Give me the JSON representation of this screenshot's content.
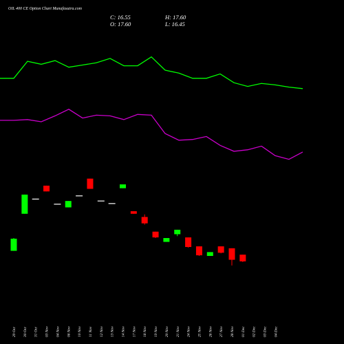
{
  "header": {
    "title": "OIL 400 CE Option Chart Munafasutra.com",
    "close": "C: 16.55",
    "high": "H: 17.60",
    "open": "O: 17.60",
    "low": "L: 16.45"
  },
  "colors": {
    "background": "#000000",
    "up": "#00ff00",
    "down": "#ff0000",
    "neutral": "#ffffff",
    "line_upper": "#00ff00",
    "line_lower": "#cc00cc"
  },
  "chart_data": {
    "type": "candlestick",
    "categories": [
      "29 Oct",
      "30 Oct",
      "31 Oct",
      "03 Nov",
      "04 Nov",
      "06 Nov",
      "10 Nov",
      "11 Nov",
      "12 Nov",
      "13 Nov",
      "14 Nov",
      "17 Nov",
      "18 Nov",
      "19 Nov",
      "20 Nov",
      "21 Nov",
      "24 Nov",
      "25 Nov",
      "26 Nov",
      "27 Nov",
      "28 Nov",
      "01 Dec",
      "02 Dec",
      "03 Dec",
      "04 Dec"
    ],
    "candles": [
      {
        "open": 18.2,
        "high": 20.2,
        "low": 18.2,
        "close": 20.1,
        "dir": "up"
      },
      {
        "open": 24.0,
        "high": 27.0,
        "low": 24.0,
        "close": 27.0,
        "dir": "up"
      },
      {
        "open": 26.3,
        "high": 26.3,
        "low": 26.3,
        "close": 26.3,
        "dir": "flat"
      },
      {
        "open": 28.4,
        "high": 28.4,
        "low": 27.5,
        "close": 27.5,
        "dir": "down"
      },
      {
        "open": 25.5,
        "high": 25.5,
        "low": 25.5,
        "close": 25.5,
        "dir": "flat"
      },
      {
        "open": 25.0,
        "high": 26.0,
        "low": 25.0,
        "close": 26.0,
        "dir": "up"
      },
      {
        "open": 26.8,
        "high": 26.8,
        "low": 26.8,
        "close": 26.8,
        "dir": "flat"
      },
      {
        "open": 29.5,
        "high": 29.5,
        "low": 27.9,
        "close": 27.9,
        "dir": "down"
      },
      {
        "open": 26.0,
        "high": 26.0,
        "low": 26.0,
        "close": 26.0,
        "dir": "flat"
      },
      {
        "open": 25.6,
        "high": 25.6,
        "low": 25.6,
        "close": 25.6,
        "dir": "flat"
      },
      {
        "open": 28.0,
        "high": 28.6,
        "low": 28.0,
        "close": 28.6,
        "dir": "up"
      },
      {
        "open": 24.4,
        "high": 24.4,
        "low": 24.0,
        "close": 24.0,
        "dir": "down"
      },
      {
        "open": 23.5,
        "high": 23.9,
        "low": 22.3,
        "close": 22.5,
        "dir": "down"
      },
      {
        "open": 21.2,
        "high": 21.2,
        "low": 20.2,
        "close": 20.3,
        "dir": "down"
      },
      {
        "open": 19.6,
        "high": 20.2,
        "low": 19.6,
        "close": 20.2,
        "dir": "up"
      },
      {
        "open": 20.8,
        "high": 21.5,
        "low": 20.5,
        "close": 21.5,
        "dir": "up"
      },
      {
        "open": 20.3,
        "high": 20.3,
        "low": 18.7,
        "close": 18.8,
        "dir": "down"
      },
      {
        "open": 18.9,
        "high": 18.9,
        "low": 17.4,
        "close": 17.5,
        "dir": "down"
      },
      {
        "open": 18.0,
        "high": 18.0,
        "low": 17.4,
        "close": 17.4,
        "dir": "up"
      },
      {
        "open": 18.9,
        "high": 18.9,
        "low": 17.8,
        "close": 17.9,
        "dir": "down"
      },
      {
        "open": 18.6,
        "high": 18.6,
        "low": 15.9,
        "close": 16.8,
        "dir": "down"
      },
      {
        "open": 17.6,
        "high": 17.6,
        "low": 16.45,
        "close": 16.55,
        "dir": "down"
      }
    ],
    "candle_slots": [
      0,
      1,
      2,
      3,
      4,
      5,
      6,
      7,
      8,
      9,
      10,
      11,
      12,
      13,
      14,
      15,
      16,
      17,
      18,
      19,
      20,
      21,
      22,
      23,
      24
    ],
    "line_upper": [
      87.5,
      87.5,
      89.8,
      89.4,
      89.9,
      89.0,
      89.3,
      89.6,
      90.2,
      89.2,
      89.2,
      90.4,
      88.6,
      88.2,
      87.5,
      87.5,
      88.1,
      86.9,
      86.4,
      86.8,
      86.6,
      86.3,
      86.1
    ],
    "line_lower": [
      81.8,
      81.8,
      81.9,
      81.6,
      82.4,
      83.3,
      82.1,
      82.5,
      82.4,
      81.9,
      82.6,
      82.5,
      80.0,
      79.1,
      79.2,
      79.6,
      78.4,
      77.6,
      77.8,
      78.3,
      77.0,
      76.5,
      77.5
    ],
    "grid": false,
    "legend": "none"
  }
}
